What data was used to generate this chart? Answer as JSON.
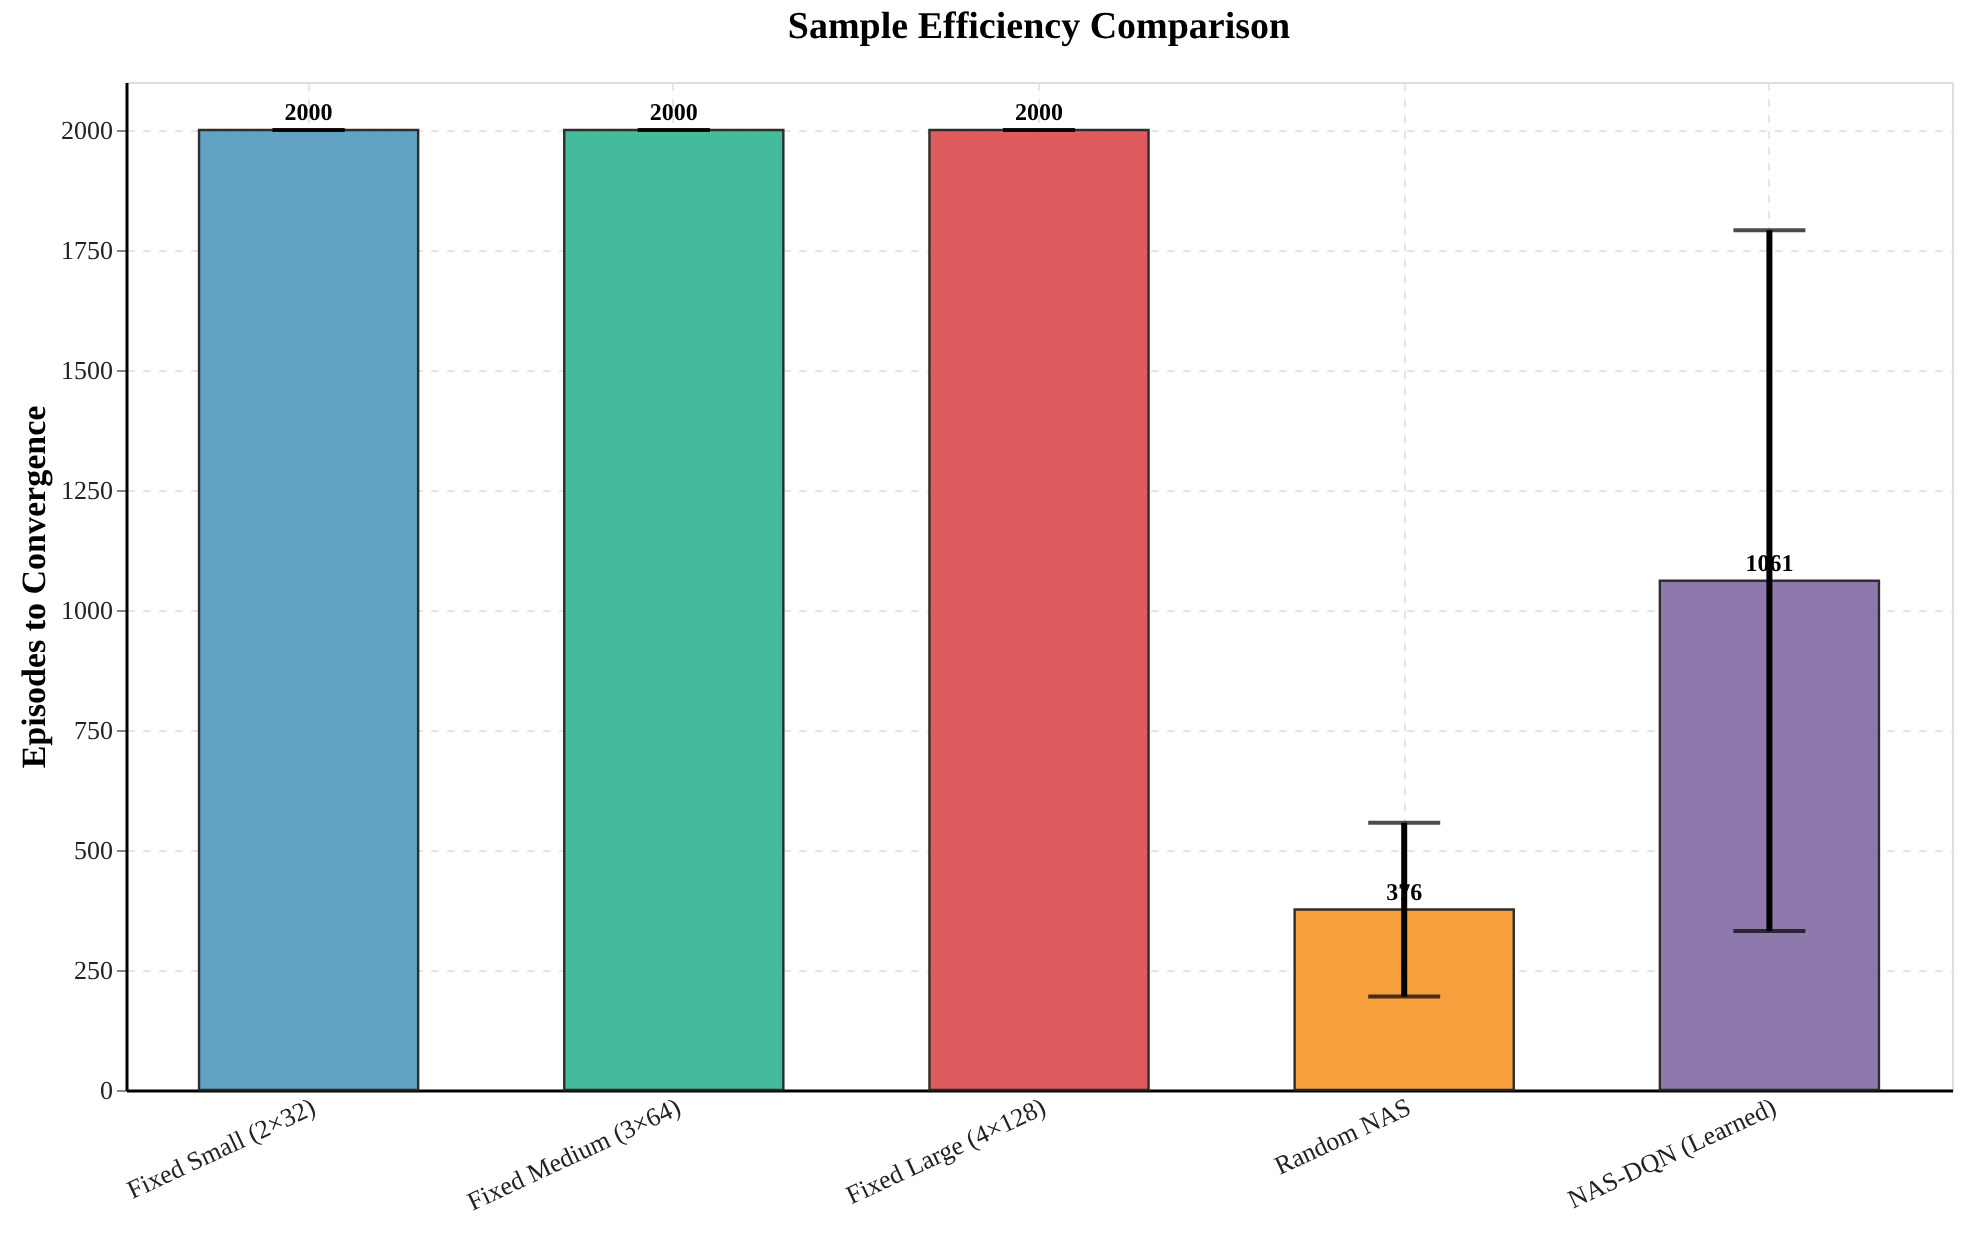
{
  "chart_data": {
    "type": "bar",
    "title": "Sample Efficiency Comparison",
    "ylabel": "Episodes to Convergence",
    "categories": [
      "Fixed Small (2×32)",
      "Fixed Medium (3×64)",
      "Fixed Large (4×128)",
      "Random NAS",
      "NAS-DQN (Learned)"
    ],
    "values": [
      2000,
      2000,
      2000,
      376,
      1061
    ],
    "errors": [
      0,
      0,
      0,
      181,
      730
    ],
    "colors": [
      "#5a9ebf",
      "#3bb896",
      "#de5355",
      "#f59a33",
      "#8772a7"
    ],
    "ylim": [
      0,
      2100
    ],
    "yticks": [
      0,
      250,
      500,
      750,
      1000,
      1250,
      1500,
      1750,
      2000
    ],
    "grid": true,
    "data_labels": true
  }
}
